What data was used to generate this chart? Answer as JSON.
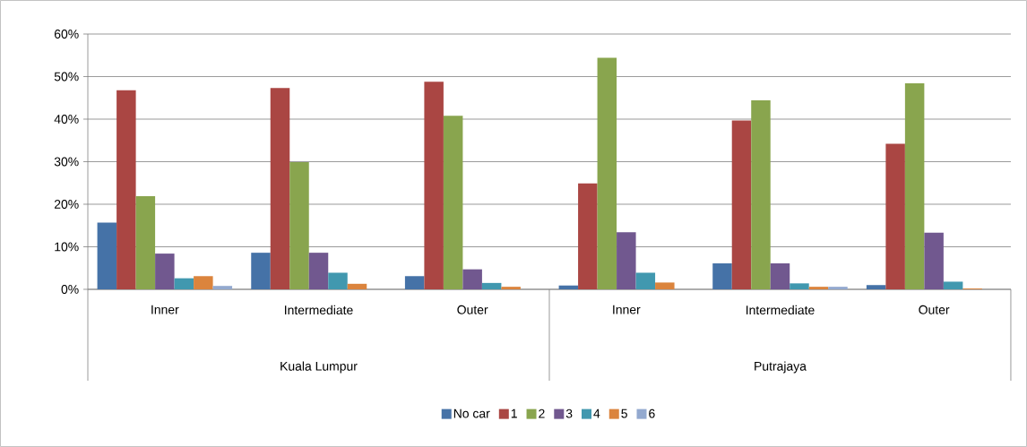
{
  "chart_data": {
    "type": "bar",
    "categories": [
      "Inner",
      "Intermediate",
      "Outer",
      "Inner",
      "Intermediate",
      "Outer"
    ],
    "annotations": [
      "Kuala Lumpur",
      "Putrajaya"
    ],
    "series": [
      {
        "name": "No car",
        "color": "#4572a7",
        "values": [
          15.7,
          8.6,
          3.1,
          0.9,
          6.1,
          1.0
        ]
      },
      {
        "name": "1",
        "color": "#aa4643",
        "values": [
          46.8,
          47.3,
          48.8,
          24.9,
          39.7,
          34.2
        ]
      },
      {
        "name": "2",
        "color": "#89a54e",
        "values": [
          21.9,
          29.9,
          40.8,
          54.4,
          44.4,
          48.4
        ]
      },
      {
        "name": "3",
        "color": "#71588f",
        "values": [
          8.4,
          8.6,
          4.7,
          13.4,
          6.1,
          13.3
        ]
      },
      {
        "name": "4",
        "color": "#4198af",
        "values": [
          2.6,
          3.9,
          1.5,
          3.9,
          1.4,
          1.8
        ]
      },
      {
        "name": "5",
        "color": "#db843d",
        "values": [
          3.1,
          1.3,
          0.6,
          1.6,
          0.6,
          0.2
        ]
      },
      {
        "name": "6",
        "color": "#93a9cf",
        "values": [
          0.8,
          null,
          null,
          null,
          0.6,
          null
        ]
      }
    ],
    "ylim": [
      0,
      60
    ],
    "yticks": [
      {
        "value": 0,
        "label": "0%"
      },
      {
        "value": 10,
        "label": "10%"
      },
      {
        "value": 20,
        "label": "20%"
      },
      {
        "value": 30,
        "label": "30%"
      },
      {
        "value": 40,
        "label": "40%"
      },
      {
        "value": 50,
        "label": "50%"
      },
      {
        "value": 60,
        "label": "60%"
      }
    ],
    "grid": "y",
    "legend": "bottom"
  }
}
